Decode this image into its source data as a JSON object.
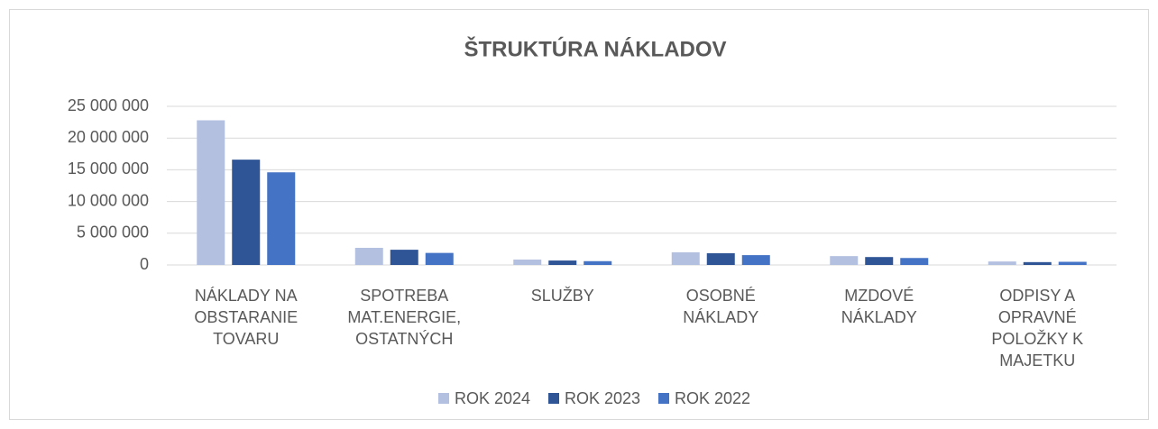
{
  "chart_data": {
    "type": "bar",
    "title": "ŠTRUKTÚRA NÁKLADOV",
    "categories": [
      "NÁKLADY NA OBSTARANIE TOVARU",
      "SPOTREBA MAT.ENERGIE, OSTATNÝCH",
      "SLUŽBY",
      "OSOBNÉ NÁKLADY",
      "MZDOVÉ NÁKLADY",
      "ODPISY A OPRAVNÉ POLOŽKY K MAJETKU"
    ],
    "series": [
      {
        "name": "ROK 2024",
        "color": "#b4c0e0",
        "values": [
          22800000,
          2700000,
          850000,
          2000000,
          1400000,
          550000
        ]
      },
      {
        "name": "ROK 2023",
        "color": "#2f5597",
        "values": [
          16600000,
          2400000,
          700000,
          1850000,
          1250000,
          450000
        ]
      },
      {
        "name": "ROK 2022",
        "color": "#4472c4",
        "values": [
          14600000,
          1900000,
          600000,
          1550000,
          1100000,
          500000
        ]
      }
    ],
    "ylim": [
      0,
      25000000
    ],
    "yticks": [
      {
        "value": 0,
        "label": "0"
      },
      {
        "value": 5000000,
        "label": "5 000 000"
      },
      {
        "value": 10000000,
        "label": "10 000 000"
      },
      {
        "value": 15000000,
        "label": "15 000 000"
      },
      {
        "value": 20000000,
        "label": "20 000 000"
      },
      {
        "value": 25000000,
        "label": "25 000 000"
      }
    ],
    "grid": true,
    "legend": "bottom"
  }
}
